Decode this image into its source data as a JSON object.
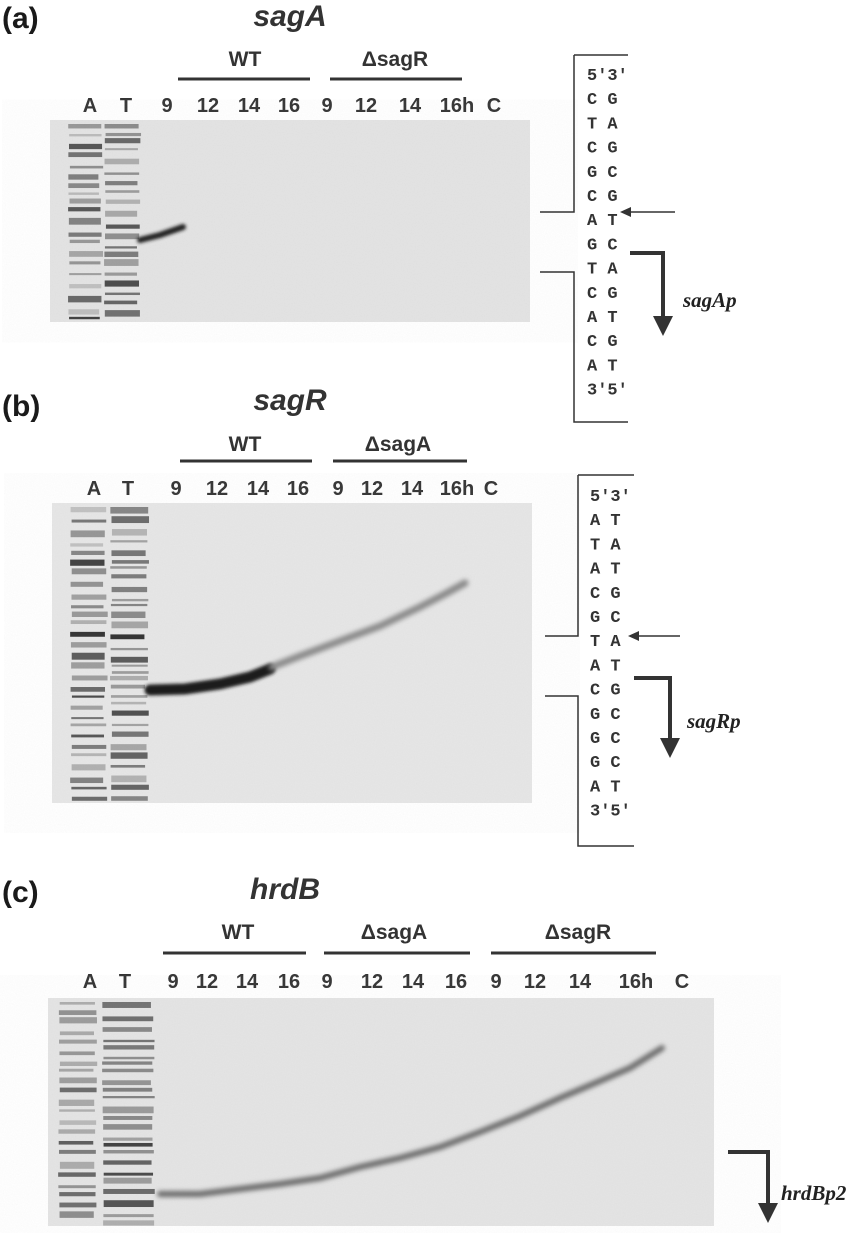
{
  "panels": [
    {
      "label": "(a)",
      "gene": "sagA",
      "groups": [
        "WT",
        "ΔsagR"
      ],
      "lanes": [
        "A",
        "T",
        "9",
        "12",
        "14",
        "16",
        "9",
        "12",
        "14",
        "16h",
        "C"
      ],
      "sequence": [
        "5'3'",
        "C G",
        "T A",
        "C G",
        "G C",
        "C G",
        "A T",
        "G C",
        "T A",
        "C G",
        "A T",
        "C G",
        "A T",
        "3'5'"
      ],
      "promoter": "sagAp"
    },
    {
      "label": "(b)",
      "gene": "sagR",
      "groups": [
        "WT",
        "ΔsagA"
      ],
      "lanes": [
        "A",
        "T",
        "9",
        "12",
        "14",
        "16",
        "9",
        "12",
        "14",
        "16h",
        "C"
      ],
      "sequence": [
        "5'3'",
        "A T",
        "T A",
        "A T",
        "C G",
        "G C",
        "T A",
        "A T",
        "C G",
        "G C",
        "G C",
        "G C",
        "A T",
        "3'5'"
      ],
      "promoter": "sagRp"
    },
    {
      "label": "(c)",
      "gene": "hrdB",
      "groups": [
        "WT",
        "ΔsagA",
        "ΔsagR"
      ],
      "lanes": [
        "A",
        "T",
        "9",
        "12",
        "14",
        "16",
        "9",
        "12",
        "14",
        "16",
        "9",
        "12",
        "14",
        "16h",
        "C"
      ],
      "promoter": "hrdBp2"
    }
  ],
  "colors": {
    "gel": "#e5e5e5",
    "band": "#1e1e1e",
    "ink": "#333333"
  }
}
